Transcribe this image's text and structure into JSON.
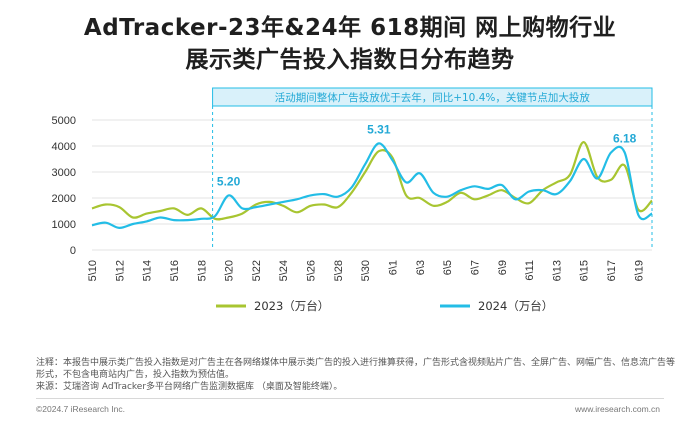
{
  "header": {
    "title_line1": "AdTracker-23年&24年 618期间 网上购物行业",
    "title_line2": "展示类广告投入指数日分布趋势"
  },
  "annotation": {
    "banner": "活动期间整体广告投放优于去年，同比+10.4%，关键节点加大投放"
  },
  "notes": {
    "note": "注释：本报告中展示类广告投入指数是对广告主在各网络媒体中展示类广告的投入进行推算获得，广告形式含视频贴片广告、全屏广告、网幅广告、信息流广告等形式，不包含电商站内广告，投入指数为预估值。",
    "source": "来源：艾瑞咨询 AdTracker多平台网络广告监测数据库 （桌面及智能终端）。"
  },
  "footer": {
    "copyright": "©2024.7 iResearch Inc.",
    "url": "www.iresearch.com.cn"
  },
  "colors": {
    "series_2023": "#a8c531",
    "series_2024": "#23bde6",
    "label_blue": "#23a9d6",
    "banner_bg": "#d9f1fa",
    "banner_border": "#23bde6"
  },
  "chart_data": {
    "type": "line",
    "title": "AdTracker-23年&24年 618期间 网上购物行业 展示类广告投入指数日分布趋势",
    "xlabel": "",
    "ylabel": "",
    "ylim": [
      0,
      5000
    ],
    "yticks": [
      0,
      1000,
      2000,
      3000,
      4000,
      5000
    ],
    "grid": true,
    "legend": "bottom",
    "x": [
      "5\\10",
      "5\\11",
      "5\\12",
      "5\\13",
      "5\\14",
      "5\\15",
      "5\\16",
      "5\\17",
      "5\\18",
      "5\\19",
      "5\\20",
      "5\\21",
      "5\\22",
      "5\\23",
      "5\\24",
      "5\\25",
      "5\\26",
      "5\\27",
      "5\\28",
      "5\\29",
      "5\\30",
      "5\\31",
      "6\\1",
      "6\\2",
      "6\\3",
      "6\\4",
      "6\\5",
      "6\\6",
      "6\\7",
      "6\\8",
      "6\\9",
      "6\\10",
      "6\\11",
      "6\\12",
      "6\\13",
      "6\\14",
      "6\\15",
      "6\\16",
      "6\\17",
      "6\\18",
      "6\\19",
      "6\\20"
    ],
    "xtick_labels": [
      "5\\10",
      "5\\12",
      "5\\14",
      "5\\16",
      "5\\18",
      "5\\20",
      "5\\22",
      "5\\24",
      "5\\26",
      "5\\28",
      "5\\30",
      "6\\1",
      "6\\3",
      "6\\5",
      "6\\7",
      "6\\9",
      "6\\11",
      "6\\13",
      "6\\15",
      "6\\17",
      "6\\19"
    ],
    "series": [
      {
        "name": "2023（万台）",
        "values": [
          1600,
          1750,
          1650,
          1250,
          1400,
          1500,
          1600,
          1350,
          1600,
          1200,
          1250,
          1400,
          1750,
          1850,
          1700,
          1450,
          1700,
          1750,
          1650,
          2200,
          3000,
          3800,
          3550,
          2100,
          2000,
          1700,
          1850,
          2200,
          1950,
          2100,
          2300,
          2000,
          1800,
          2300,
          2600,
          2900,
          4150,
          2800,
          2700,
          3250,
          1550,
          1900
        ]
      },
      {
        "name": "2024（万台）",
        "values": [
          950,
          1050,
          850,
          1000,
          1100,
          1250,
          1150,
          1150,
          1200,
          1300,
          2100,
          1600,
          1650,
          1750,
          1850,
          1950,
          2100,
          2150,
          2050,
          2400,
          3300,
          4100,
          3450,
          2600,
          2950,
          2200,
          2050,
          2300,
          2450,
          2350,
          2500,
          1950,
          2250,
          2300,
          2150,
          2650,
          3500,
          2750,
          3750,
          3750,
          1350,
          1400
        ]
      }
    ],
    "data_labels": [
      {
        "x": "5\\20",
        "text": "5.20"
      },
      {
        "x": "5\\31",
        "text": "5.31"
      },
      {
        "x": "6\\18",
        "text": "6.18"
      }
    ]
  }
}
